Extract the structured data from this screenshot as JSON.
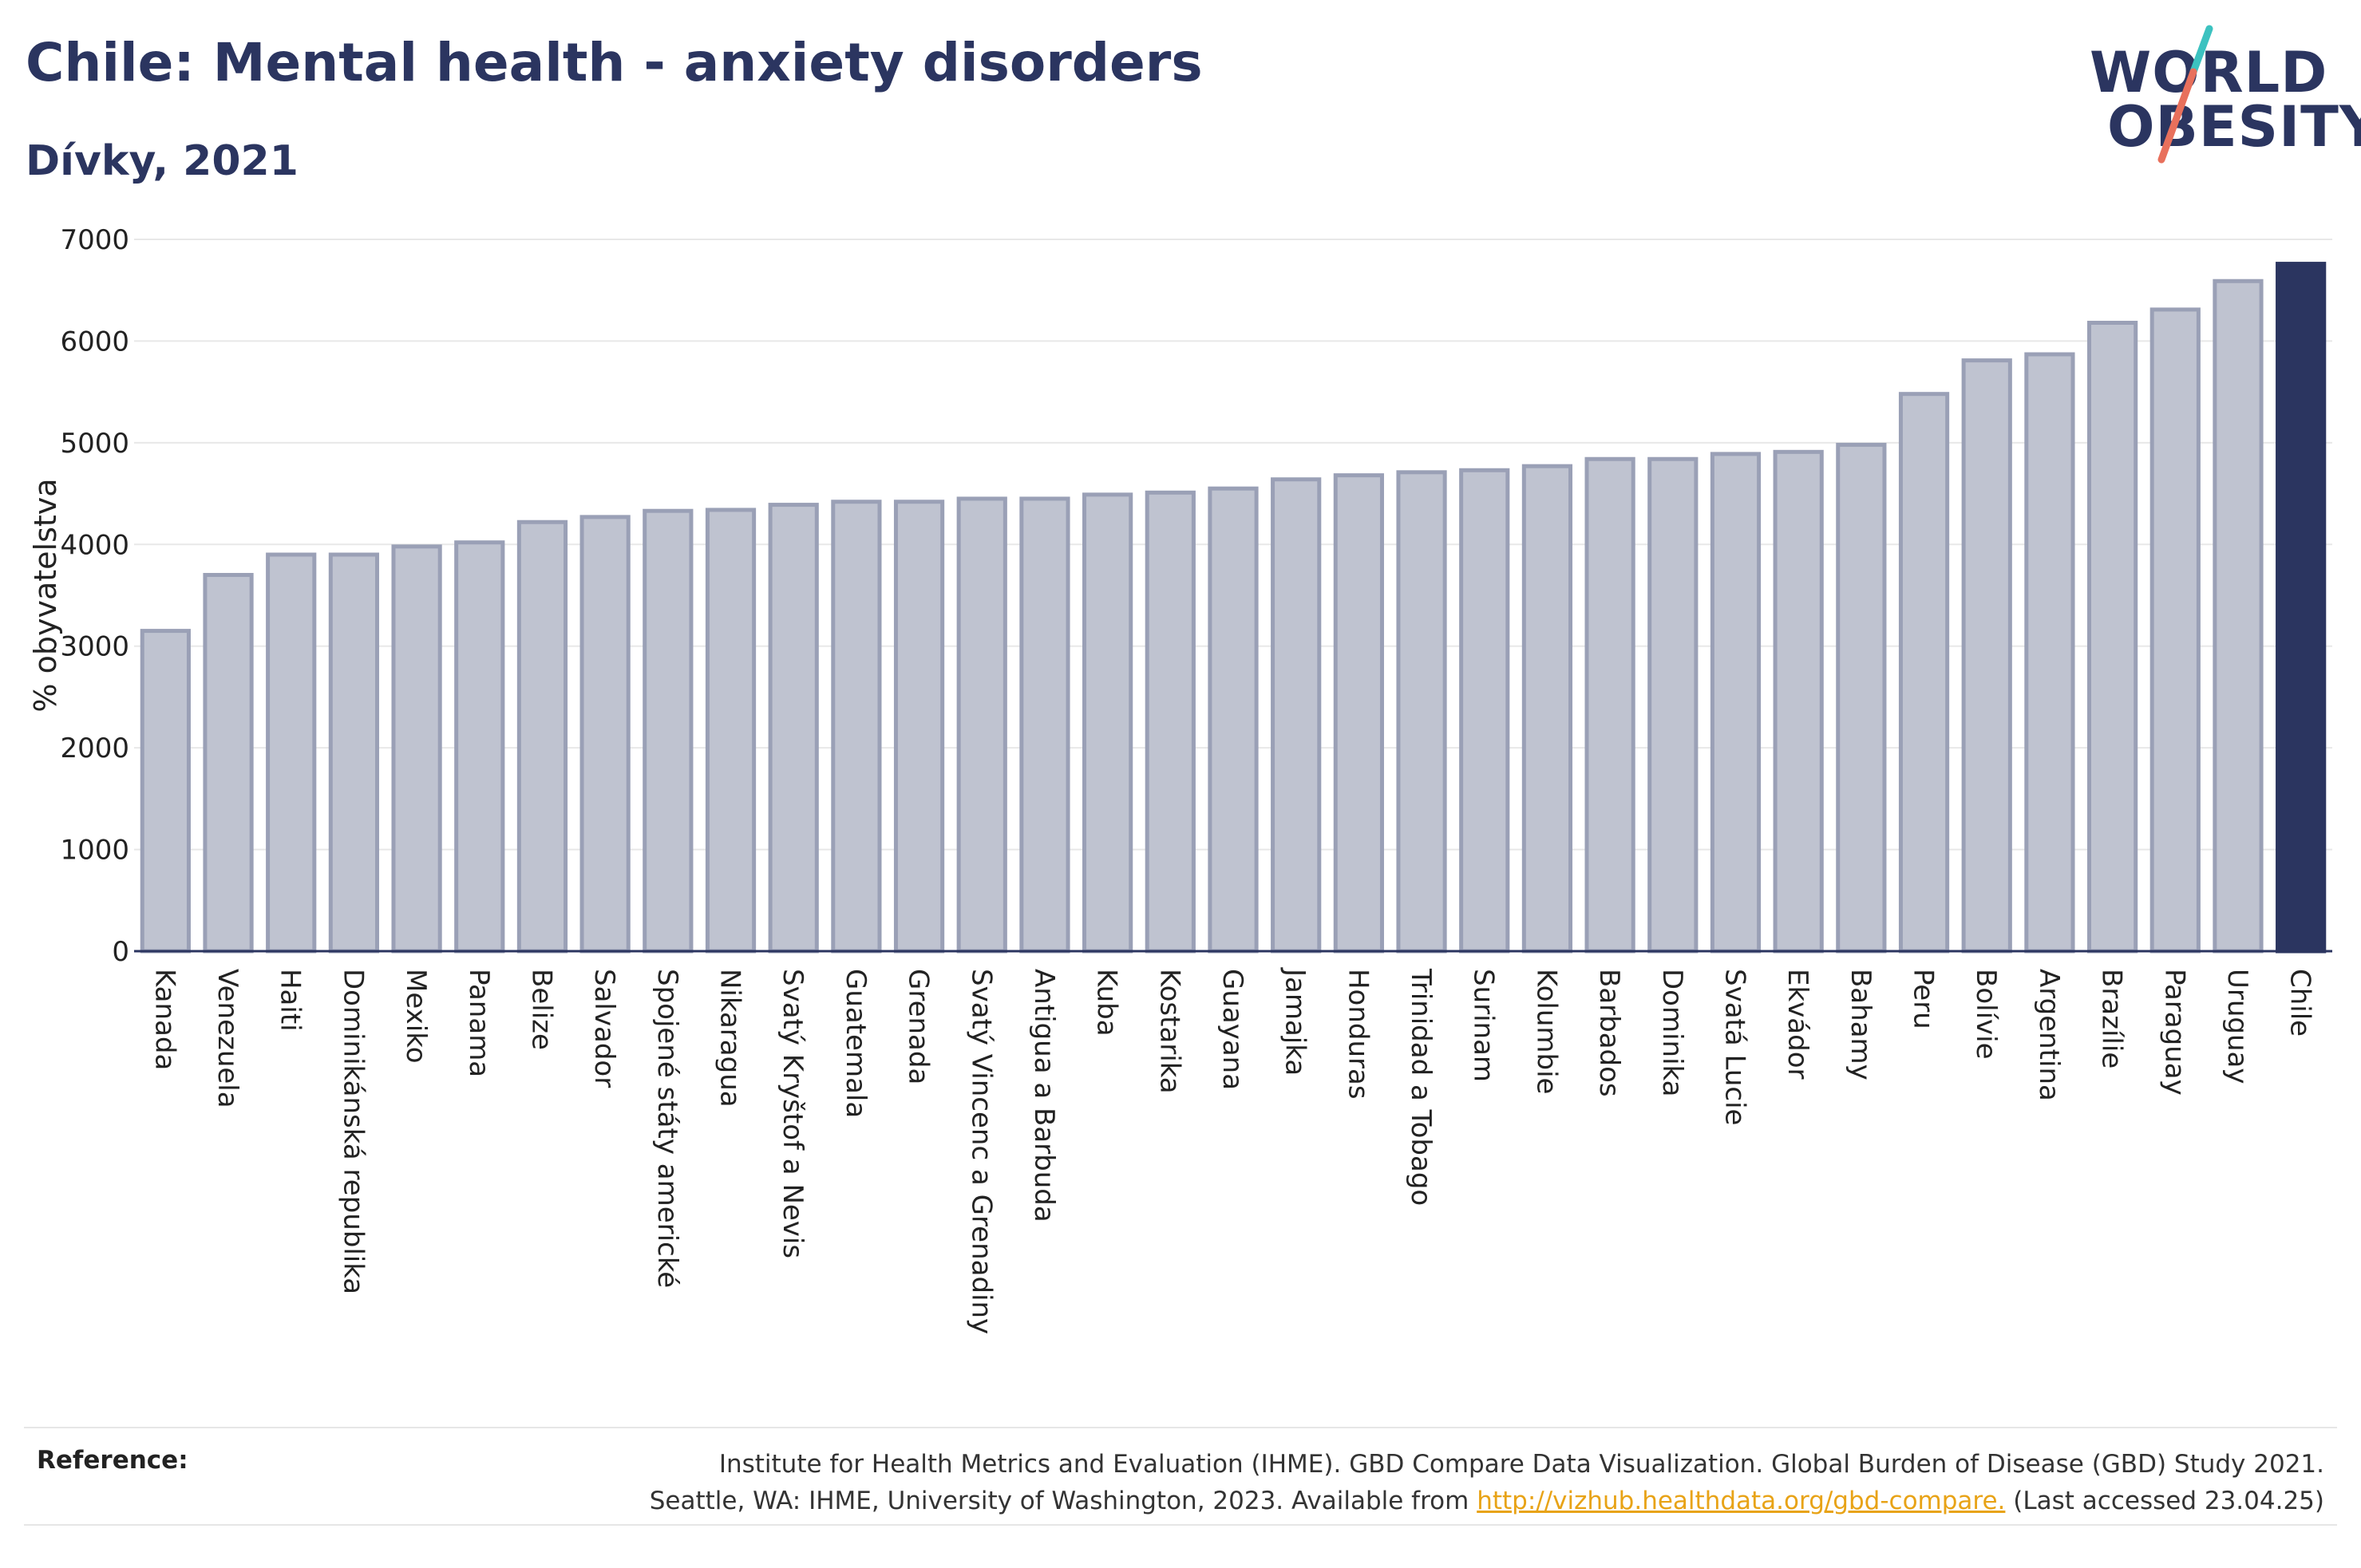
{
  "header": {
    "title": "Chile: Mental health - anxiety disorders",
    "subtitle": "Dívky, 2021"
  },
  "logo": {
    "line1": "WORLD",
    "line2": "OBESITY",
    "slash_colors": [
      "#3cc2c0",
      "#e8705c"
    ]
  },
  "chart_data": {
    "type": "bar",
    "ylabel": "% obyvatelstva",
    "ylim": [
      0,
      7000
    ],
    "yticks": [
      0,
      1000,
      2000,
      3000,
      4000,
      5000,
      6000,
      7000
    ],
    "grid": true,
    "colors": {
      "bar": "#bfc3d0",
      "bar_edge": "#9aa0b6",
      "highlight": "#2b3560"
    },
    "highlight": "Chile",
    "categories": [
      "Kanada",
      "Venezuela",
      "Haiti",
      "Dominikánská republika",
      "Mexiko",
      "Panama",
      "Belize",
      "Salvador",
      "Spojené státy americké",
      "Nikaragua",
      "Svatý Kryštof a Nevis",
      "Guatemala",
      "Grenada",
      "Svatý Vincenc a Grenadiny",
      "Antigua a Barbuda",
      "Kuba",
      "Kostarika",
      "Guayana",
      "Jamajka",
      "Honduras",
      "Trinidad a Tobago",
      "Surinam",
      "Kolumbie",
      "Barbados",
      "Dominika",
      "Svatá Lucie",
      "Ekvádor",
      "Bahamy",
      "Peru",
      "Bolívie",
      "Argentina",
      "Brazílie",
      "Paraguay",
      "Uruguay",
      "Chile"
    ],
    "values": [
      3150,
      3700,
      3900,
      3900,
      3980,
      4020,
      4220,
      4270,
      4330,
      4340,
      4390,
      4420,
      4420,
      4450,
      4450,
      4490,
      4510,
      4550,
      4640,
      4680,
      4710,
      4730,
      4770,
      4840,
      4840,
      4890,
      4910,
      4980,
      5480,
      5810,
      5870,
      6180,
      6310,
      6590,
      6760
    ]
  },
  "footer": {
    "reference_label": "Reference:",
    "reference_line1": "Institute for Health Metrics and Evaluation (IHME). GBD Compare Data Visualization. Global Burden of Disease (GBD) Study 2021.",
    "reference_line2_prefix": "Seattle, WA: IHME, University of Washington, 2023. Available from ",
    "reference_link": "http://vizhub.healthdata.org/gbd-compare.",
    "reference_line2_suffix": " (Last accessed 23.04.25)"
  }
}
